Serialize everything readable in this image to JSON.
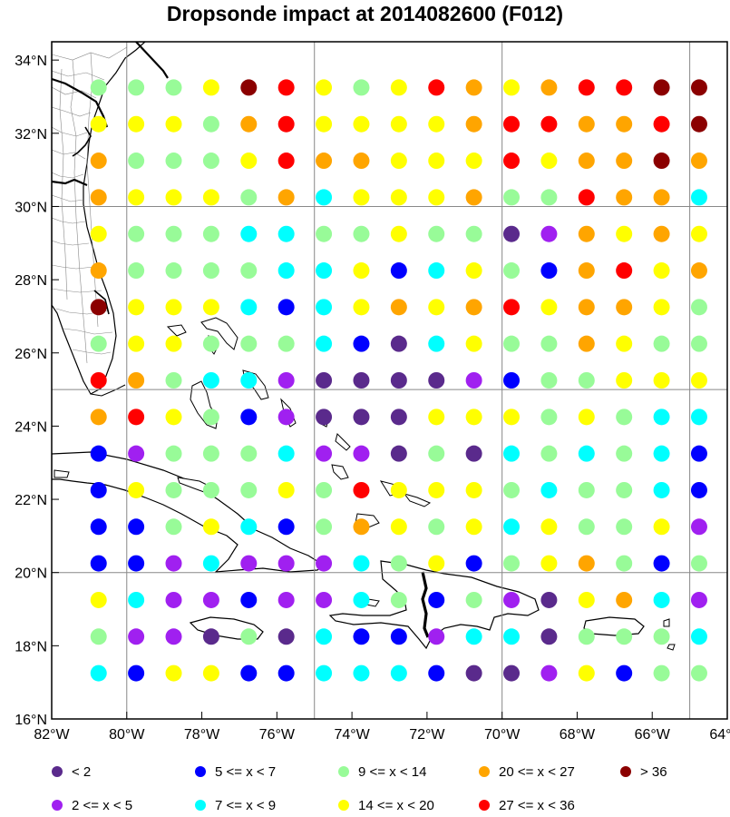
{
  "chart_data": {
    "type": "scatter",
    "title": "Dropsonde impact at 2014082600 (F012)",
    "xlabel": "",
    "ylabel": "",
    "xlim": [
      -82,
      -64
    ],
    "ylim": [
      16,
      34.5
    ],
    "x_ticks": [
      -82,
      -80,
      -78,
      -76,
      -74,
      -72,
      -70,
      -68,
      -66,
      -64
    ],
    "x_tick_labels": [
      "82°W",
      "80°W",
      "78°W",
      "76°W",
      "74°W",
      "72°W",
      "70°W",
      "68°W",
      "66°W",
      "64°W"
    ],
    "y_ticks": [
      16,
      18,
      20,
      22,
      24,
      26,
      28,
      30,
      32,
      34
    ],
    "y_tick_labels": [
      "16°N",
      "18°N",
      "20°N",
      "22°N",
      "24°N",
      "26°N",
      "28°N",
      "30°N",
      "32°N",
      "34°N"
    ],
    "grid_lon": [
      -80,
      -75,
      -70,
      -65
    ],
    "grid_lat": [
      20,
      25,
      30
    ],
    "grid": true,
    "legend_position": "bottom",
    "legend": [
      {
        "cat": 0,
        "label": "< 2",
        "color": "#5a2a8c"
      },
      {
        "cat": 1,
        "label": "2 <= x < 5",
        "color": "#a020f0"
      },
      {
        "cat": 2,
        "label": "5 <= x < 7",
        "color": "#0000ff"
      },
      {
        "cat": 3,
        "label": "7 <= x < 9",
        "color": "#00ffff"
      },
      {
        "cat": 4,
        "label": "9 <= x < 14",
        "color": "#98fb98"
      },
      {
        "cat": 5,
        "label": "14 <= x < 20",
        "color": "#ffff00"
      },
      {
        "cat": 6,
        "label": "20 <= x < 27",
        "color": "#ffa500"
      },
      {
        "cat": 7,
        "label": "27 <= x < 36",
        "color": "#ff0000"
      },
      {
        "cat": 8,
        "label": "> 36",
        "color": "#8b0000"
      }
    ],
    "grid_points": {
      "lons": [
        -80.75,
        -79.75,
        -78.75,
        -77.75,
        -76.75,
        -75.75,
        -74.75,
        -73.75,
        -72.75,
        -71.75,
        -70.75,
        -69.75,
        -68.75,
        -67.75,
        -66.75,
        -65.75,
        -64.75
      ],
      "lats": [
        33.25,
        32.25,
        31.25,
        30.25,
        29.25,
        28.25,
        27.25,
        26.25,
        25.25,
        24.25,
        23.25,
        22.25,
        21.25,
        20.25,
        19.25,
        18.25,
        17.25
      ],
      "categories": [
        [
          4,
          4,
          4,
          5,
          8,
          7,
          5,
          4,
          5,
          7,
          6,
          5,
          6,
          7,
          7,
          8,
          8
        ],
        [
          5,
          5,
          5,
          4,
          6,
          7,
          5,
          5,
          5,
          5,
          6,
          7,
          7,
          6,
          6,
          7,
          8
        ],
        [
          6,
          4,
          4,
          4,
          5,
          7,
          6,
          6,
          5,
          5,
          5,
          7,
          5,
          6,
          6,
          8,
          6
        ],
        [
          6,
          5,
          5,
          5,
          4,
          6,
          3,
          5,
          5,
          5,
          6,
          4,
          4,
          7,
          6,
          6,
          3
        ],
        [
          5,
          4,
          4,
          4,
          3,
          3,
          4,
          4,
          5,
          4,
          4,
          0,
          1,
          6,
          5,
          6,
          5
        ],
        [
          6,
          4,
          4,
          4,
          4,
          3,
          3,
          5,
          2,
          3,
          5,
          4,
          2,
          6,
          7,
          5,
          6
        ],
        [
          8,
          5,
          5,
          5,
          3,
          2,
          3,
          5,
          6,
          5,
          6,
          7,
          5,
          6,
          6,
          5,
          4
        ],
        [
          4,
          5,
          5,
          4,
          4,
          4,
          3,
          2,
          0,
          3,
          5,
          4,
          4,
          6,
          5,
          4,
          4
        ],
        [
          7,
          6,
          4,
          3,
          3,
          1,
          0,
          0,
          0,
          0,
          1,
          2,
          4,
          4,
          5,
          5,
          5
        ],
        [
          6,
          7,
          5,
          4,
          2,
          1,
          0,
          0,
          0,
          5,
          5,
          5,
          4,
          5,
          4,
          3,
          3
        ],
        [
          2,
          1,
          4,
          4,
          4,
          3,
          1,
          1,
          0,
          4,
          0,
          3,
          4,
          3,
          4,
          3,
          2
        ],
        [
          2,
          5,
          4,
          4,
          4,
          5,
          4,
          7,
          5,
          5,
          5,
          4,
          3,
          4,
          4,
          3,
          2
        ],
        [
          2,
          2,
          4,
          5,
          3,
          2,
          4,
          6,
          5,
          4,
          5,
          3,
          5,
          4,
          4,
          5,
          1
        ],
        [
          2,
          2,
          1,
          3,
          1,
          1,
          1,
          3,
          4,
          5,
          2,
          4,
          5,
          6,
          4,
          2,
          4
        ],
        [
          5,
          3,
          1,
          1,
          2,
          1,
          1,
          3,
          4,
          2,
          4,
          1,
          0,
          5,
          6,
          3,
          1
        ],
        [
          4,
          1,
          1,
          0,
          4,
          0,
          3,
          2,
          2,
          1,
          3,
          3,
          0,
          4,
          4,
          4,
          3
        ],
        [
          3,
          2,
          5,
          5,
          2,
          2,
          3,
          3,
          3,
          2,
          0,
          0,
          1,
          5,
          2,
          4,
          4
        ]
      ]
    }
  }
}
